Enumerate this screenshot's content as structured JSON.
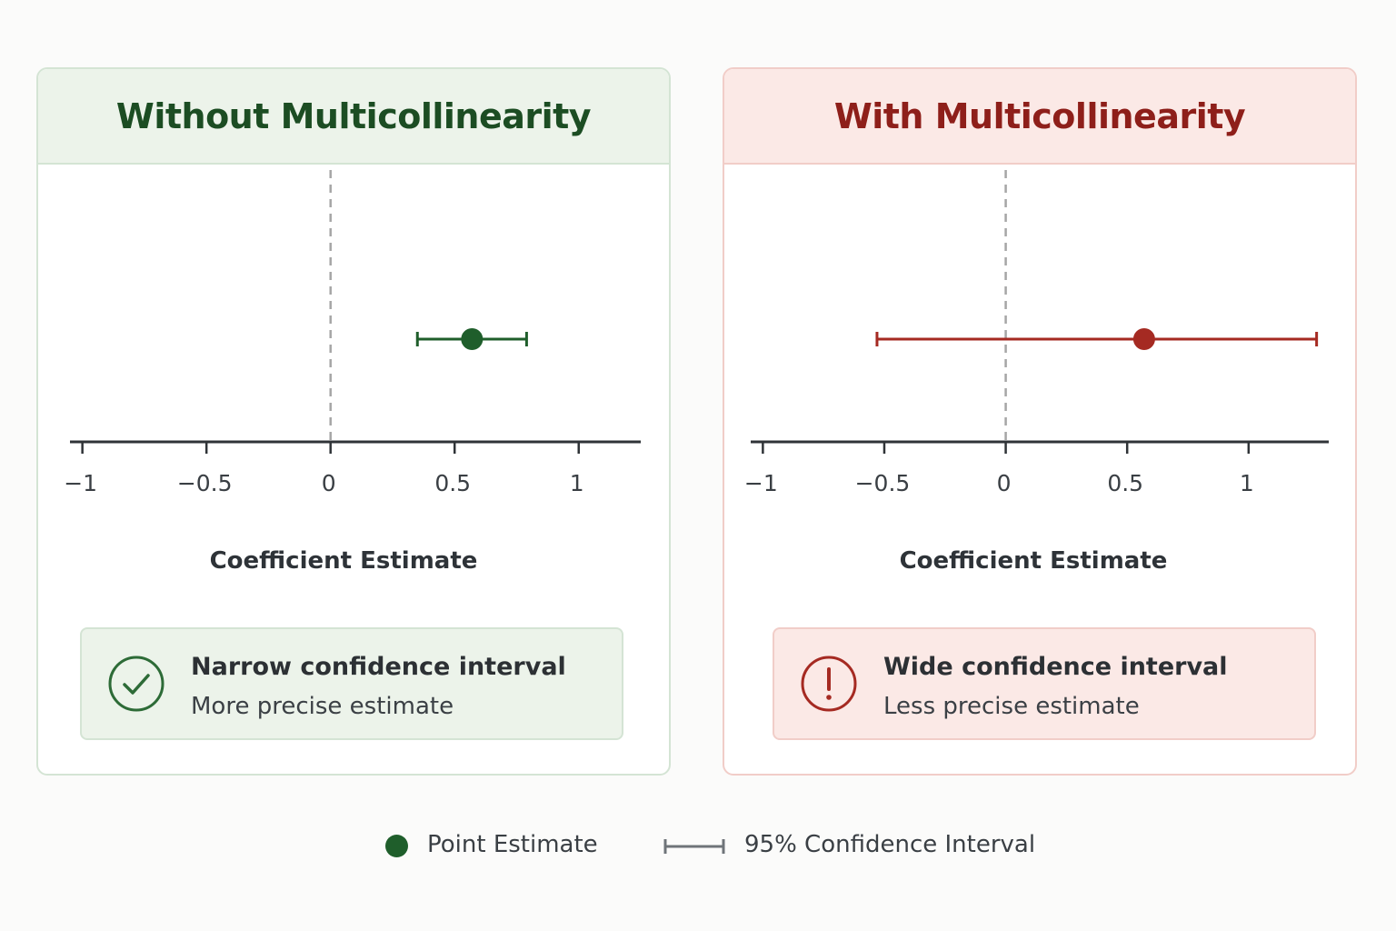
{
  "colors": {
    "good": "#1f5e2b",
    "bad": "#a52a22",
    "axis": "#2f3337",
    "zero_line": "#a6a6a6",
    "legend_ci": "#6f7479"
  },
  "panels": [
    {
      "title": "Without Multicollinearity",
      "status": "good",
      "icon": "check-circle-icon",
      "note_title": "Narrow confidence interval",
      "note_subtitle": "More precise estimate",
      "xlabel": "Coefficient Estimate"
    },
    {
      "title": "With Multicollinearity",
      "status": "bad",
      "icon": "exclamation-circle-icon",
      "note_title": "Wide confidence interval",
      "note_subtitle": "Less precise estimate",
      "xlabel": "Coefficient Estimate"
    }
  ],
  "legend": {
    "point_label": "Point Estimate",
    "ci_label": "95% Confidence Interval"
  },
  "chart_data": [
    {
      "type": "scatter",
      "title": "Without Multicollinearity",
      "xlabel": "Coefficient Estimate",
      "xlim": [
        -1.05,
        1.25
      ],
      "xticks": [
        -1,
        -0.5,
        0,
        0.5,
        1
      ],
      "xtick_labels": [
        "−1",
        "−0.5",
        "0",
        "0.5",
        "1"
      ],
      "reference_line_x": 0,
      "point_estimate": 0.57,
      "ci": [
        0.35,
        0.79
      ]
    },
    {
      "type": "scatter",
      "title": "With Multicollinearity",
      "xlabel": "Coefficient Estimate",
      "xlim": [
        -1.05,
        1.33
      ],
      "xticks": [
        -1,
        -0.5,
        0,
        0.5,
        1
      ],
      "xtick_labels": [
        "−1",
        "−0.5",
        "0",
        "0.5",
        "1"
      ],
      "reference_line_x": 0,
      "point_estimate": 0.57,
      "ci": [
        -0.53,
        1.28
      ]
    }
  ]
}
